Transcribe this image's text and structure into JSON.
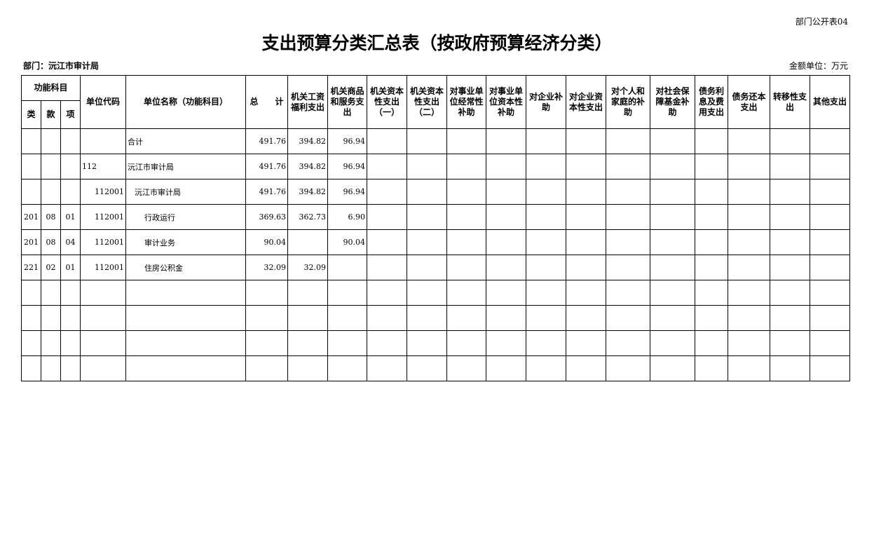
{
  "form_no": "部门公开表04",
  "title": "支出预算分类汇总表（按政府预算经济分类）",
  "department": "部门：沅江市审计局",
  "unit": "金额单位：万元",
  "headers": {
    "func": "功能科目",
    "lei": "类",
    "kuan": "款",
    "xiang": "项",
    "code": "单位代码",
    "name": "单位名称（功能科目）",
    "total": "总　　计",
    "cols": [
      "机关工资福利支出",
      "机关商品和服务支出",
      "机关资本性支出（一）",
      "机关资本性支出（二）",
      "对事业单位经常性补助",
      "对事业单位资本性补助",
      "对企业补助",
      "对企业资本性支出",
      "对个人和家庭的补助",
      "对社会保障基金补助",
      "债务利息及费用支出",
      "债务还本支出",
      "转移性支出",
      "其他支出"
    ]
  },
  "rows": [
    {
      "lei": "",
      "kuan": "",
      "xiang": "",
      "code": "",
      "name": "合计",
      "total": "491.76",
      "c0": "394.82",
      "c1": "96.94"
    },
    {
      "lei": "",
      "kuan": "",
      "xiang": "",
      "code": "112",
      "name": "沅江市审计局",
      "total": "491.76",
      "c0": "394.82",
      "c1": "96.94"
    },
    {
      "lei": "",
      "kuan": "",
      "xiang": "",
      "code": "112001",
      "name": "沅江市审计局",
      "total": "491.76",
      "c0": "394.82",
      "c1": "96.94"
    },
    {
      "lei": "201",
      "kuan": "08",
      "xiang": "01",
      "code": "112001",
      "name": "行政运行",
      "total": "369.63",
      "c0": "362.73",
      "c1": "6.90"
    },
    {
      "lei": "201",
      "kuan": "08",
      "xiang": "04",
      "code": "112001",
      "name": "审计业务",
      "total": "90.04",
      "c0": "",
      "c1": "90.04"
    },
    {
      "lei": "221",
      "kuan": "02",
      "xiang": "01",
      "code": "112001",
      "name": "住房公积金",
      "total": "32.09",
      "c0": "32.09",
      "c1": ""
    }
  ],
  "empty_rows": 4
}
